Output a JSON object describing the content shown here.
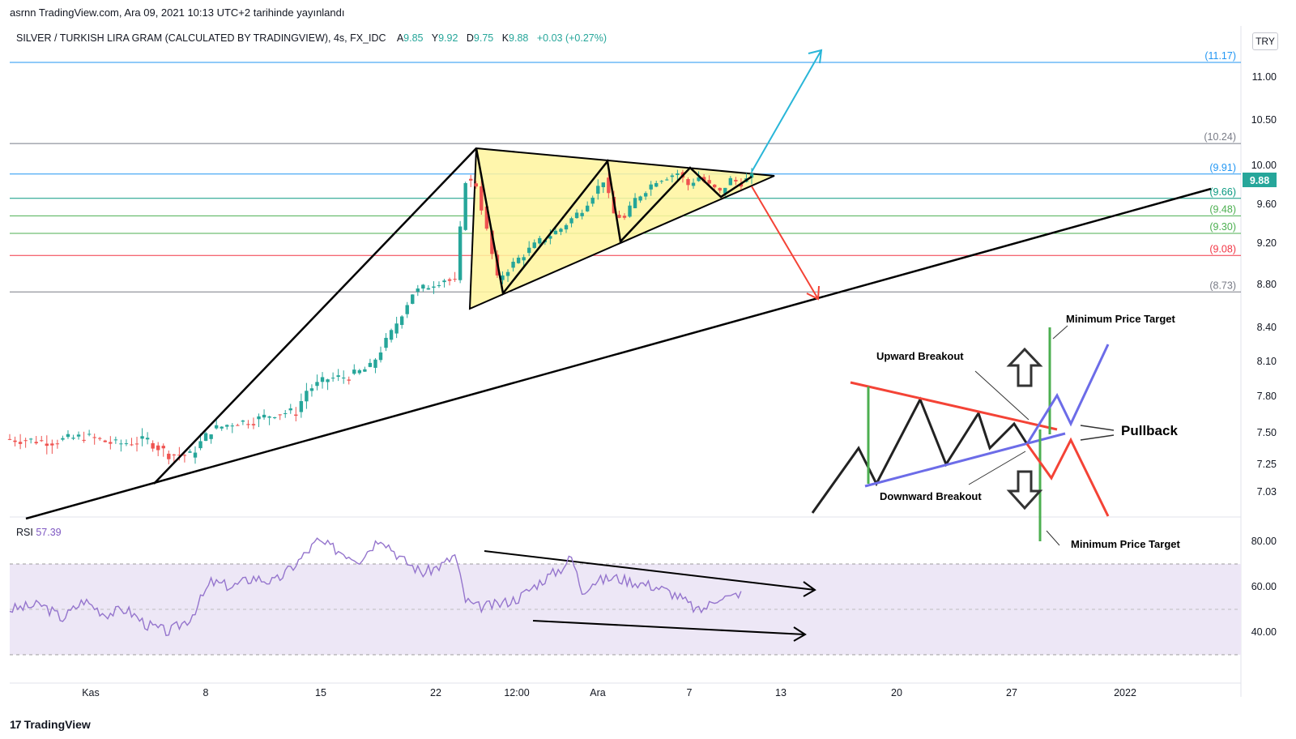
{
  "header": {
    "publisher": "asrnn TradingView.com, Ara 09, 2021 10:13 UTC+2 tarihinde yayınlandı",
    "symbol": "SILVER / TURKISH LIRA GRAM (CALCULATED BY TRADINGVIEW), 4s, FX_IDC",
    "open_label": "A",
    "open": "9.85",
    "high_label": "Y",
    "high": "9.92",
    "low_label": "D",
    "low": "9.75",
    "close_label": "K",
    "close": "9.88",
    "change": "+0.03 (+0.27%)",
    "currency": "TRY"
  },
  "colors": {
    "up": "#26a69a",
    "down": "#ef5350",
    "triangle_fill": "#fff59d",
    "rsi": "#9575cd",
    "rsi_band": "#ede7f6",
    "last_price": "#26a69a"
  },
  "chart_data": {
    "type": "candlestick",
    "title": "",
    "yaxis": {
      "ticks": [
        "11.00",
        "10.50",
        "10.00",
        "9.60",
        "9.20",
        "8.80",
        "8.40",
        "8.10",
        "7.80",
        "7.50",
        "7.25",
        "7.03"
      ],
      "range": [
        6.95,
        11.55
      ]
    },
    "xaxis": {
      "ticks": [
        "Kas",
        "8",
        "15",
        "22",
        "12:00",
        "Ara",
        "7",
        "13",
        "20",
        "27",
        "2022"
      ]
    },
    "last_price": "9.88",
    "levels": [
      {
        "label": "(11.17)",
        "value": 11.17,
        "color": "#2196f3"
      },
      {
        "label": "(10.24)",
        "value": 10.24,
        "color": "#787b86"
      },
      {
        "label": "(9.91)",
        "value": 9.91,
        "color": "#2196f3"
      },
      {
        "label": "(9.66)",
        "value": 9.66,
        "color": "#089981"
      },
      {
        "label": "(9.48)",
        "value": 9.48,
        "color": "#4caf50"
      },
      {
        "label": "(9.30)",
        "value": 9.3,
        "color": "#4caf50"
      },
      {
        "label": "(9.08)",
        "value": 9.08,
        "color": "#f23645"
      },
      {
        "label": "(8.73)",
        "value": 8.73,
        "color": "#787b86"
      }
    ],
    "price_path": [
      [
        0,
        7.45
      ],
      [
        8,
        7.43
      ],
      [
        14,
        7.47
      ],
      [
        20,
        7.41
      ],
      [
        26,
        7.44
      ],
      [
        30,
        7.33
      ],
      [
        34,
        7.32
      ],
      [
        38,
        7.52
      ],
      [
        42,
        7.58
      ],
      [
        46,
        7.6
      ],
      [
        50,
        7.66
      ],
      [
        54,
        7.67
      ],
      [
        56,
        7.85
      ],
      [
        60,
        7.95
      ],
      [
        64,
        7.97
      ],
      [
        68,
        8.05
      ],
      [
        72,
        8.35
      ],
      [
        76,
        8.72
      ],
      [
        80,
        8.81
      ],
      [
        82,
        8.85
      ],
      [
        84,
        8.82
      ],
      [
        86,
        9.85
      ],
      [
        88,
        9.8
      ],
      [
        92,
        8.85
      ],
      [
        96,
        9.05
      ],
      [
        100,
        9.22
      ],
      [
        104,
        9.35
      ],
      [
        108,
        9.55
      ],
      [
        112,
        9.85
      ],
      [
        114,
        9.5
      ],
      [
        116,
        9.45
      ],
      [
        118,
        9.65
      ],
      [
        122,
        9.85
      ],
      [
        126,
        9.92
      ],
      [
        128,
        9.8
      ],
      [
        130,
        9.88
      ],
      [
        132,
        9.79
      ],
      [
        134,
        9.72
      ],
      [
        136,
        9.85
      ],
      [
        138,
        9.82
      ],
      [
        140,
        9.88
      ]
    ],
    "rsi": {
      "label": "RSI",
      "value": "57.39",
      "ticks": [
        "80.00",
        "60.00",
        "40.00"
      ],
      "band": [
        30,
        70
      ],
      "range": [
        25,
        86
      ],
      "path": [
        [
          0,
          50
        ],
        [
          6,
          52
        ],
        [
          10,
          46
        ],
        [
          14,
          54
        ],
        [
          18,
          48
        ],
        [
          22,
          50
        ],
        [
          26,
          43
        ],
        [
          30,
          40
        ],
        [
          34,
          46
        ],
        [
          38,
          62
        ],
        [
          42,
          60
        ],
        [
          46,
          64
        ],
        [
          50,
          62
        ],
        [
          54,
          70
        ],
        [
          58,
          80
        ],
        [
          62,
          76
        ],
        [
          66,
          72
        ],
        [
          70,
          82
        ],
        [
          74,
          72
        ],
        [
          78,
          66
        ],
        [
          82,
          70
        ],
        [
          84,
          74
        ],
        [
          86,
          54
        ],
        [
          88,
          51
        ],
        [
          92,
          52
        ],
        [
          96,
          55
        ],
        [
          100,
          62
        ],
        [
          104,
          68
        ],
        [
          106,
          73
        ],
        [
          108,
          58
        ],
        [
          110,
          62
        ],
        [
          114,
          64
        ],
        [
          118,
          62
        ],
        [
          122,
          60
        ],
        [
          126,
          56
        ],
        [
          130,
          49
        ],
        [
          132,
          52
        ],
        [
          134,
          56
        ],
        [
          136,
          55
        ],
        [
          138,
          58
        ]
      ]
    }
  },
  "annotations": {
    "min_target_top": "Minimum Price Target",
    "upward_breakout": "Upward Breakout",
    "pullback": "Pullback",
    "downward_breakout": "Downward Breakout",
    "min_target_bottom": "Minimum Price Target"
  },
  "footer": {
    "brand_mark": "17",
    "brand": "TradingView"
  }
}
